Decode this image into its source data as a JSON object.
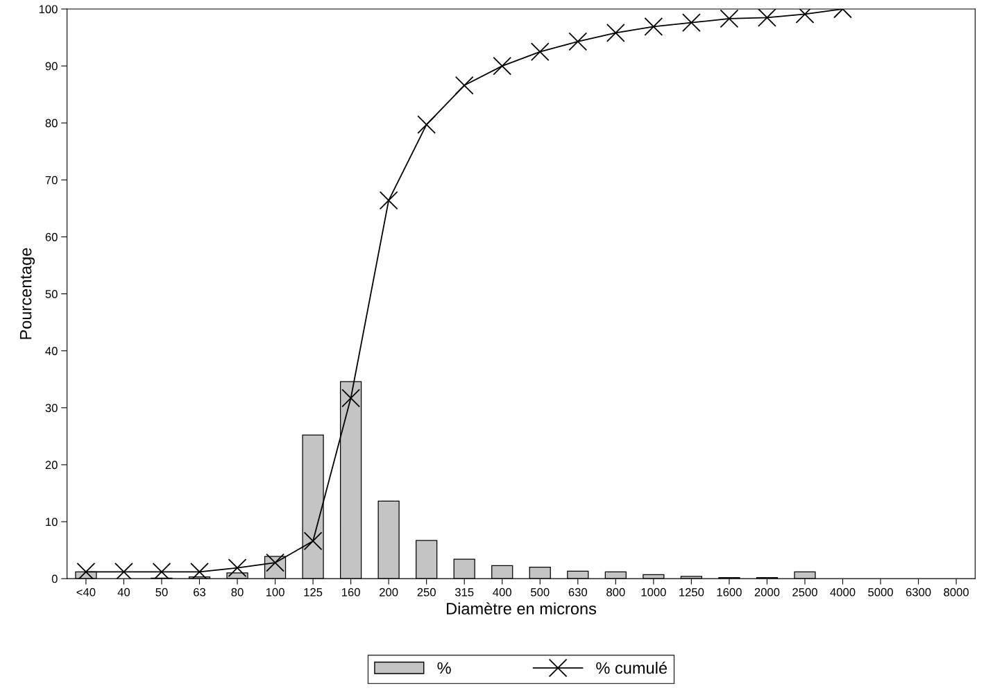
{
  "chart_data": {
    "type": "bar",
    "xlabel": "Diamètre en microns",
    "ylabel": "Pourcentage",
    "categories": [
      "<40",
      "40",
      "50",
      "63",
      "80",
      "100",
      "125",
      "160",
      "200",
      "250",
      "315",
      "400",
      "500",
      "630",
      "800",
      "1000",
      "1250",
      "1600",
      "2000",
      "2500",
      "4000",
      "5000",
      "6300",
      "8000"
    ],
    "series": [
      {
        "name": "%",
        "color": "#c4c4c4",
        "values": [
          1.2,
          0,
          0.1,
          0.3,
          1.0,
          3.9,
          25.2,
          34.6,
          13.6,
          6.7,
          3.4,
          2.3,
          2.0,
          1.3,
          1.2,
          0.7,
          0.4,
          0.2,
          0.2,
          1.2,
          0,
          0,
          0,
          0
        ]
      },
      {
        "name": "% cumulé",
        "type": "line",
        "color": "#000000",
        "marker": "cross",
        "values": [
          1.2,
          1.2,
          1.2,
          1.2,
          1.9,
          2.8,
          6.6,
          31.7,
          66.4,
          79.7,
          86.6,
          90.0,
          92.5,
          94.3,
          95.8,
          96.9,
          97.6,
          98.3,
          98.5,
          99.1,
          100,
          null,
          null,
          null
        ]
      }
    ],
    "ylim": [
      0,
      100
    ],
    "yticks": [
      0,
      10,
      20,
      30,
      40,
      50,
      60,
      70,
      80,
      90,
      100
    ],
    "grid": false,
    "legend": "bottom"
  }
}
